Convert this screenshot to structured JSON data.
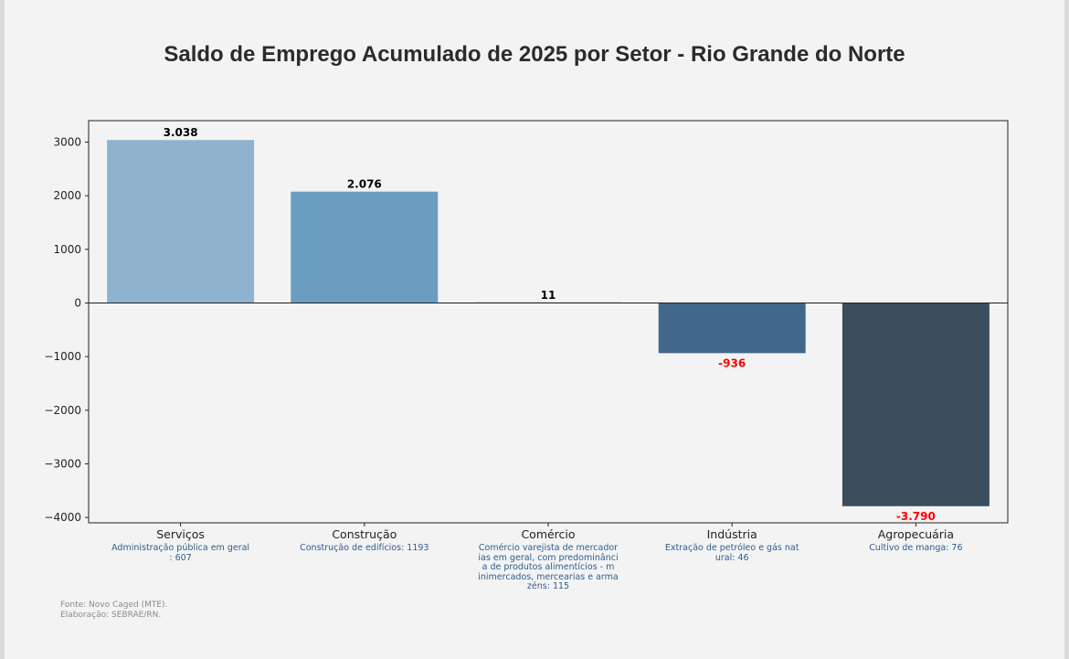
{
  "chart_data": {
    "type": "bar",
    "title": "Saldo de Emprego Acumulado de 2025 por Setor - Rio Grande do Norte",
    "categories": [
      "Serviços",
      "Construção",
      "Comércio",
      "Indústria",
      "Agropecuária"
    ],
    "values": [
      3038,
      2076,
      11,
      -936,
      -3790
    ],
    "value_labels": [
      "3.038",
      "2.076",
      "11",
      "-936",
      "-3.790"
    ],
    "subcategory_notes": [
      "Administração pública em geral\n: 607",
      "Construção de edifícios: 1193",
      "Comércio varejista de mercador\nias em geral, com predominânci\na de produtos alimentícios - m\ninimercados, mercearias e arma\nzéns: 115",
      "Extração de petróleo e gás nat\nural: 46",
      "Cultivo de manga: 76"
    ],
    "colors": [
      "#8fb3cf",
      "#6b9dc0",
      "#4a7aa0",
      "#41678a",
      "#3a4e5e"
    ],
    "negative_label_color": "#ff0000",
    "positive_label_color": "#000000",
    "ylim": [
      -4100,
      3400
    ],
    "yticks": [
      3000,
      2000,
      1000,
      0,
      -1000,
      -2000,
      -3000,
      -4000
    ],
    "ytick_labels": [
      "3000",
      "2000",
      "1000",
      "0",
      "−1000",
      "−2000",
      "−3000",
      "−4000"
    ],
    "xlabel": "",
    "ylabel": "",
    "grid": false
  },
  "footer": {
    "source_line1": "Fonte: Novo Caged (MTE).",
    "source_line2": "Elaboração: SEBRAE/RN."
  }
}
